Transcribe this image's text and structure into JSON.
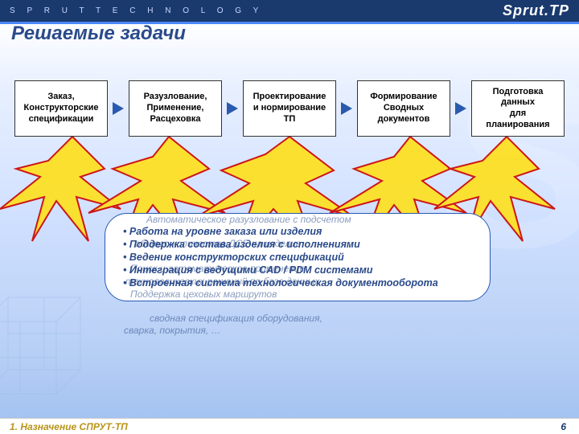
{
  "header": {
    "brand_spaced": "S P R U T    T E C H N O L O G Y",
    "logo_text": "Sprut.TP",
    "accent_color": "#4a88ff"
  },
  "title": "Решаемые задачи",
  "flow": {
    "boxes": [
      {
        "label": "Заказ,\nКонструкторские\nспецификации"
      },
      {
        "label": "Разузлование,\nПрименение,\nРасцеховка"
      },
      {
        "label": "Проектирование\nи нормирование\nТП"
      },
      {
        "label": "Формирование\nСводных\nдокументов"
      },
      {
        "label": "Подготовка\nданных\nдля\nпланирования"
      }
    ],
    "arrow_color": "#2a5ab0",
    "box_border": "#333333",
    "box_bg": "#ffffff",
    "box_fontsize": 11
  },
  "bullets_bubble": {
    "border_color": "#2a5ab0",
    "bg": "#ffffff",
    "text_color": "#2a4a8a",
    "fontsize": 12.5,
    "items": [
      "Работа на уровне заказа или изделия",
      "Поддержка состава изделия с исполнениями",
      "Ведение конструкторских спецификаций",
      "Интеграция с ведущими CAD / PDM системами",
      "Встроенная система технологическая документооборота"
    ]
  },
  "overlay_ghost": {
    "color": "rgba(42,74,138,0.55)",
    "fontsize": 12,
    "lines": [
      "Автоматическое разузлование с подсчетом",
      "общего количества ДСЕ на изделие",
      "Поиск и автоматическое применение",
      "технологических решений по базе данных",
      "Поддержка цеховых маршрутов",
      "сводная спецификация оборудования,",
      "сварка, покрытия, …"
    ]
  },
  "burst": {
    "fill": "#ffe01a",
    "stroke": "#cc0000",
    "stroke_width": 2
  },
  "footer": {
    "left": "1. Назначение СПРУТ-ТП",
    "page": "6",
    "left_color": "#b8941a",
    "page_color": "#1a3a6e"
  },
  "colors": {
    "bg_top": "#1a3a6e",
    "bg_grad_1": "#e8f0ff",
    "bg_grad_2": "#a0c0f0",
    "title_color": "#2a4a8a"
  }
}
